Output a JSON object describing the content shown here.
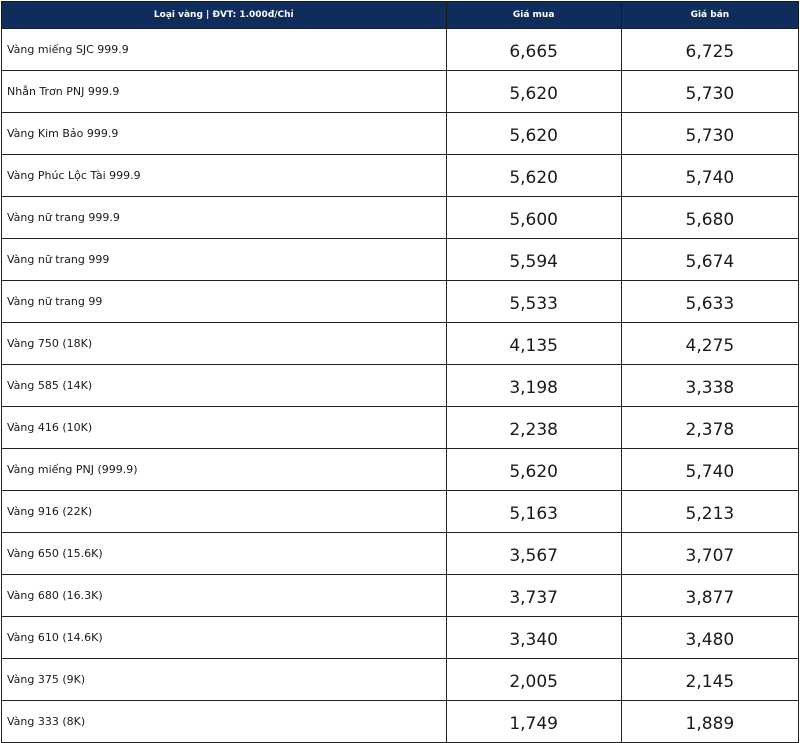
{
  "table": {
    "headers": {
      "name": "Loại vàng | ĐVT: 1.000đ/Chỉ",
      "buy": "Giá mua",
      "sell": "Giá bán"
    },
    "rows": [
      {
        "name": "Vàng miếng SJC 999.9",
        "buy": "6,665",
        "sell": "6,725"
      },
      {
        "name": "Nhẫn Trơn PNJ 999.9",
        "buy": "5,620",
        "sell": "5,730"
      },
      {
        "name": "Vàng Kim Bảo 999.9",
        "buy": "5,620",
        "sell": "5,730"
      },
      {
        "name": "Vàng Phúc Lộc Tài 999.9",
        "buy": "5,620",
        "sell": "5,740"
      },
      {
        "name": "Vàng nữ trang 999.9",
        "buy": "5,600",
        "sell": "5,680"
      },
      {
        "name": "Vàng nữ trang 999",
        "buy": "5,594",
        "sell": "5,674"
      },
      {
        "name": "Vàng nữ trang 99",
        "buy": "5,533",
        "sell": "5,633"
      },
      {
        "name": "Vàng 750 (18K)",
        "buy": "4,135",
        "sell": "4,275"
      },
      {
        "name": "Vàng 585 (14K)",
        "buy": "3,198",
        "sell": "3,338"
      },
      {
        "name": "Vàng 416 (10K)",
        "buy": "2,238",
        "sell": "2,378"
      },
      {
        "name": "Vàng miếng PNJ (999.9)",
        "buy": "5,620",
        "sell": "5,740"
      },
      {
        "name": "Vàng 916 (22K)",
        "buy": "5,163",
        "sell": "5,213"
      },
      {
        "name": "Vàng 650 (15.6K)",
        "buy": "3,567",
        "sell": "3,707"
      },
      {
        "name": "Vàng 680 (16.3K)",
        "buy": "3,737",
        "sell": "3,877"
      },
      {
        "name": "Vàng 610 (14.6K)",
        "buy": "3,340",
        "sell": "3,480"
      },
      {
        "name": "Vàng 375 (9K)",
        "buy": "2,005",
        "sell": "2,145"
      },
      {
        "name": "Vàng 333 (8K)",
        "buy": "1,749",
        "sell": "1,889"
      }
    ]
  },
  "colors": {
    "header_background": "#0f2d5c",
    "header_text": "#ffffff",
    "border": "#222222",
    "body_text": "#1a1a1a"
  }
}
